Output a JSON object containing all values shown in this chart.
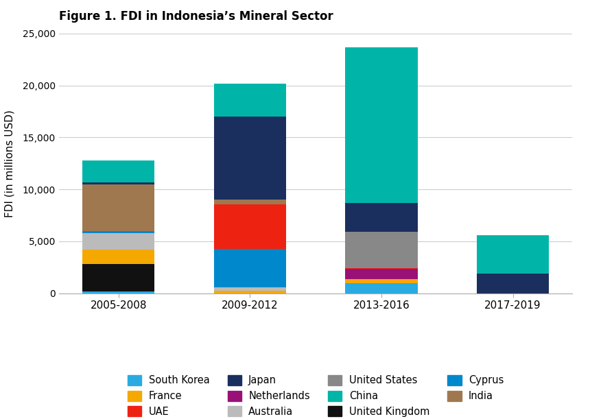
{
  "title": "Figure 1. FDI in Indonesia’s Mineral Sector",
  "ylabel": "FDI (in millions USD)",
  "periods": [
    "2005-2008",
    "2009-2012",
    "2013-2016",
    "2017-2019"
  ],
  "countries": [
    "South Korea",
    "United Kingdom",
    "France",
    "Netherlands",
    "Australia",
    "Cyprus",
    "UAE",
    "United States",
    "India",
    "Japan",
    "China"
  ],
  "colors": {
    "South Korea": "#29ABE2",
    "United Kingdom": "#111111",
    "France": "#F5A800",
    "Netherlands": "#991177",
    "Australia": "#BBBBBB",
    "Cyprus": "#0088CC",
    "UAE": "#EE2211",
    "United States": "#888888",
    "India": "#A07850",
    "Japan": "#1B2F5E",
    "China": "#00B5A8"
  },
  "data": {
    "South Korea": [
      200,
      0,
      1000,
      0
    ],
    "United Kingdom": [
      2600,
      0,
      0,
      0
    ],
    "France": [
      1400,
      250,
      350,
      0
    ],
    "Netherlands": [
      0,
      0,
      1000,
      0
    ],
    "Australia": [
      1600,
      300,
      0,
      0
    ],
    "Cyprus": [
      200,
      3700,
      0,
      0
    ],
    "UAE": [
      0,
      4300,
      100,
      0
    ],
    "United States": [
      0,
      0,
      3500,
      0
    ],
    "India": [
      4500,
      450,
      0,
      0
    ],
    "Japan": [
      200,
      8000,
      2750,
      1900
    ],
    "China": [
      2100,
      3200,
      15000,
      3700
    ]
  },
  "ylim": [
    0,
    25000
  ],
  "yticks": [
    0,
    5000,
    10000,
    15000,
    20000,
    25000
  ],
  "background_color": "#FFFFFF",
  "legend_order": [
    "South Korea",
    "France",
    "UAE",
    "Japan",
    "Netherlands",
    "Australia",
    "United States",
    "China",
    "United Kingdom",
    "Cyprus",
    "India"
  ]
}
